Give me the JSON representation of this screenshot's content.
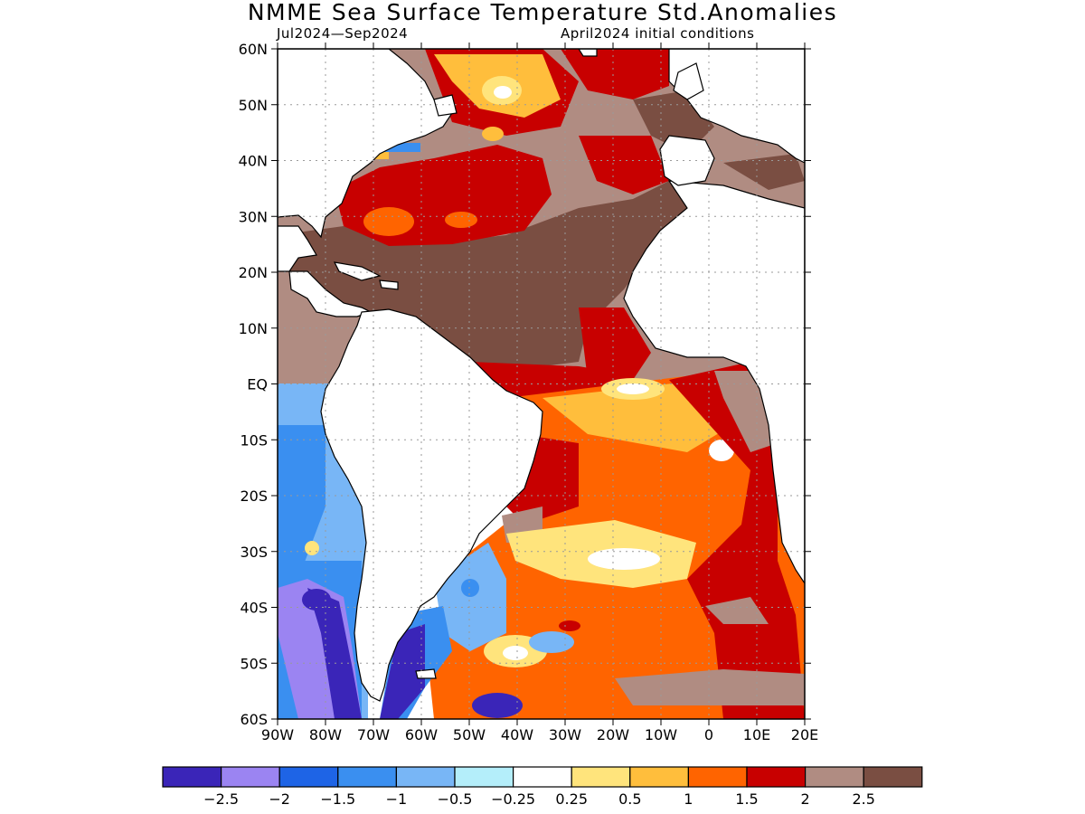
{
  "title": "NMME Sea Surface Temperature Std.Anomalies",
  "subtitle_left": "Jul2024—Sep2024",
  "subtitle_right": "April2024 initial conditions",
  "lat_labels": [
    "60N",
    "50N",
    "40N",
    "30N",
    "20N",
    "10N",
    "EQ",
    "10S",
    "20S",
    "30S",
    "40S",
    "50S",
    "60S"
  ],
  "lon_labels": [
    "90W",
    "80W",
    "70W",
    "60W",
    "50W",
    "40W",
    "30W",
    "20W",
    "10W",
    "0",
    "10E",
    "20E"
  ],
  "colorbar": {
    "colors": [
      "#3a25b8",
      "#9b84f2",
      "#1e64e6",
      "#3a8ff0",
      "#78b6f6",
      "#b4eefa",
      "#ffffff",
      "#ffe47c",
      "#ffbe3c",
      "#ff6400",
      "#c80000",
      "#b08c82",
      "#7a4e42"
    ],
    "labels": [
      "−2.5",
      "−2",
      "−1.5",
      "−1",
      "−0.5",
      "−0.25",
      "0.25",
      "0.5",
      "1",
      "1.5",
      "2",
      "2.5"
    ]
  },
  "colors": {
    "land": "#ffffff",
    "coast": "#000000",
    "grid": "#9a9a9a"
  }
}
